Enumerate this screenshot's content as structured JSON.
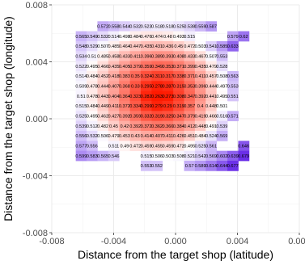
{
  "chart_data": {
    "type": "heatmap",
    "title": "",
    "xlabel": "Distance from the target shop (latitude)",
    "ylabel": "Distance from the target shop (longitude)",
    "xlim": [
      -0.008,
      0.008
    ],
    "ylim": [
      -0.008,
      0.008
    ],
    "x_ticks": [
      "-0.008",
      "-0.004",
      "0.000",
      "0.004",
      "0.008"
    ],
    "y_ticks": [
      "0.008",
      "0.004",
      "0.000",
      "-0.004",
      "-0.008"
    ],
    "grid": true,
    "color_scale": {
      "low": "#ff1a00",
      "mid_value": 0.5,
      "mid": "#ffffff",
      "high": "#6a2ee8",
      "low_value": 0.27,
      "high_value": 0.68
    },
    "x_centers": [
      -0.0075,
      -0.0068,
      -0.0061,
      -0.0054,
      -0.0047,
      -0.004,
      -0.0033,
      -0.0026,
      -0.0019,
      -0.0012,
      -0.0005,
      0.0002,
      0.0009,
      0.0016,
      0.0023,
      0.003,
      0.0037,
      0.0044,
      0.0051,
      0.0058,
      0.0065,
      0.0072
    ],
    "y_centers": [
      0.0072,
      0.0065,
      0.0058,
      0.0051,
      0.0044,
      0.0037,
      0.003,
      0.0023,
      0.0016,
      0.0009,
      0.0002,
      -0.0005,
      -0.0012,
      -0.0019,
      -0.0026,
      -0.0033,
      -0.004,
      -0.0047,
      -0.0054,
      -0.0061,
      -0.0068,
      -0.0075
    ],
    "rows": [
      [
        null,
        null,
        null,
        null,
        null,
        null,
        null,
        null,
        null,
        null,
        null,
        null,
        null,
        null,
        null,
        null,
        null,
        null,
        null,
        null,
        null,
        null
      ],
      [
        null,
        null,
        null,
        null,
        0.572,
        0.558,
        0.544,
        0.532,
        0.523,
        0.518,
        0.518,
        0.525,
        0.538,
        0.559,
        0.587,
        null,
        null,
        null,
        null,
        null,
        null,
        null
      ],
      [
        null,
        null,
        0.565,
        0.549,
        0.532,
        0.514,
        0.498,
        0.484,
        0.476,
        0.474,
        0.48,
        0.493,
        0.515,
        null,
        null,
        null,
        0.579,
        0.62,
        null,
        null,
        null,
        null
      ],
      [
        null,
        null,
        0.548,
        0.529,
        0.507,
        0.485,
        0.464,
        0.447,
        0.435,
        0.431,
        0.436,
        0.45,
        0.472,
        0.503,
        0.541,
        0.585,
        0.633,
        null,
        null,
        null,
        null,
        null
      ],
      [
        null,
        null,
        0.534,
        0.51,
        0.485,
        0.458,
        0.433,
        0.411,
        0.396,
        0.389,
        0.393,
        0.408,
        0.433,
        0.467,
        0.507,
        0.553,
        null,
        null,
        null,
        null,
        null,
        null
      ],
      [
        null,
        null,
        0.522,
        0.495,
        0.466,
        0.435,
        0.405,
        0.379,
        0.359,
        0.349,
        0.353,
        0.371,
        0.399,
        0.435,
        0.479,
        0.528,
        null,
        null,
        null,
        null,
        null,
        null
      ],
      [
        null,
        null,
        0.514,
        0.484,
        0.452,
        0.418,
        0.383,
        0.35,
        0.324,
        0.311,
        0.317,
        0.338,
        0.371,
        0.411,
        0.457,
        0.508,
        0.563,
        null,
        null,
        null,
        null,
        null
      ],
      [
        null,
        null,
        0.509,
        0.478,
        0.444,
        0.407,
        0.368,
        0.33,
        0.295,
        0.278,
        0.287,
        0.315,
        0.353,
        0.396,
        0.444,
        0.497,
        0.553,
        null,
        null,
        null,
        null,
        null
      ],
      [
        null,
        null,
        0.51,
        0.478,
        0.443,
        0.404,
        0.364,
        0.323,
        0.282,
        0.263,
        0.273,
        0.308,
        0.347,
        0.392,
        0.441,
        0.495,
        0.551,
        null,
        null,
        null,
        null,
        null
      ],
      [
        null,
        null,
        0.515,
        0.484,
        0.449,
        0.411,
        0.372,
        0.334,
        0.299,
        0.279,
        0.29,
        0.319,
        0.357,
        0.4,
        0.448,
        0.501,
        null,
        null,
        null,
        null,
        null,
        null
      ],
      [
        null,
        null,
        0.525,
        0.495,
        0.462,
        0.427,
        0.392,
        0.359,
        0.332,
        0.319,
        0.325,
        0.347,
        0.379,
        0.419,
        0.466,
        0.516,
        0.571,
        null,
        null,
        null,
        null,
        null
      ],
      [
        null,
        null,
        0.539,
        0.512,
        0.482,
        0.45,
        0.42,
        0.392,
        0.372,
        0.362,
        0.366,
        0.384,
        0.412,
        0.448,
        0.491,
        0.539,
        null,
        null,
        null,
        null,
        null,
        null
      ],
      [
        null,
        null,
        0.556,
        0.532,
        0.506,
        0.479,
        0.453,
        0.43,
        0.414,
        0.407,
        0.411,
        0.426,
        0.451,
        0.484,
        0.524,
        0.569,
        null,
        null,
        null,
        null,
        null,
        null
      ],
      [
        null,
        null,
        0.577,
        0.556,
        null,
        0.511,
        0.49,
        0.472,
        0.459,
        0.455,
        0.459,
        0.472,
        0.495,
        0.525,
        0.561,
        null,
        null,
        0.646,
        null,
        null,
        null,
        null
      ],
      [
        null,
        null,
        0.599,
        0.583,
        0.565,
        0.546,
        null,
        null,
        0.515,
        0.506,
        0.503,
        0.508,
        0.521,
        0.542,
        0.569,
        0.602,
        0.639,
        0.679,
        null,
        null,
        null,
        null
      ],
      [
        null,
        null,
        null,
        null,
        null,
        null,
        null,
        null,
        0.553,
        0.552,
        null,
        null,
        0.57,
        0.589,
        0.614,
        0.644,
        0.677,
        null,
        null,
        null,
        null,
        null
      ],
      [
        null,
        null,
        null,
        null,
        null,
        null,
        null,
        null,
        null,
        null,
        null,
        null,
        null,
        null,
        null,
        null,
        null,
        null,
        null,
        null,
        null,
        null
      ],
      [
        null,
        null,
        null,
        null,
        null,
        null,
        null,
        null,
        null,
        null,
        null,
        null,
        null,
        null,
        null,
        null,
        null,
        null,
        null,
        null,
        null,
        null
      ],
      [
        null,
        null,
        null,
        null,
        null,
        null,
        null,
        null,
        null,
        null,
        null,
        null,
        null,
        null,
        null,
        null,
        null,
        null,
        null,
        null,
        null,
        null
      ],
      [
        null,
        null,
        null,
        null,
        null,
        null,
        null,
        null,
        null,
        null,
        null,
        null,
        null,
        null,
        null,
        null,
        null,
        null,
        null,
        null,
        null,
        null
      ],
      [
        null,
        null,
        null,
        null,
        null,
        null,
        null,
        null,
        null,
        null,
        null,
        null,
        null,
        null,
        null,
        null,
        null,
        null,
        null,
        null,
        null,
        null
      ],
      [
        null,
        null,
        null,
        null,
        null,
        null,
        null,
        null,
        null,
        null,
        null,
        null,
        null,
        null,
        null,
        null,
        null,
        null,
        null,
        null,
        null,
        null
      ]
    ]
  }
}
